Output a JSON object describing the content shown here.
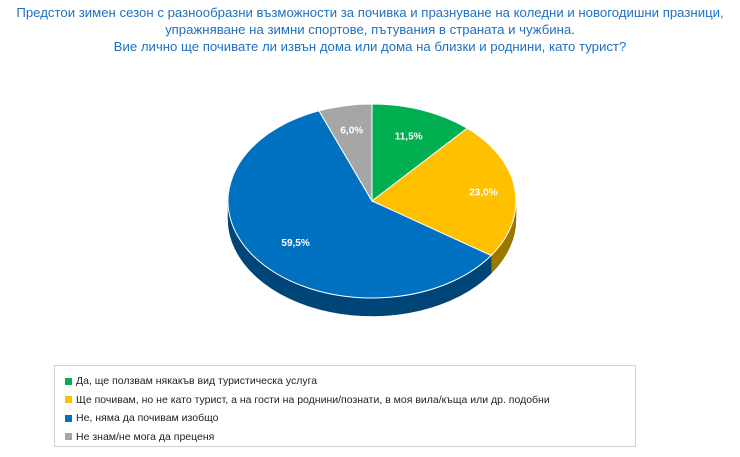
{
  "title": {
    "line1": "Предстои зимен сезон с разнообразни възможности за почивка и празнуване на коледни и новогодишни празници,",
    "line2": "упражняване на зимни спортове, пътувания в страната и чужбина.",
    "line3": "Вие лично ще почивате ли извън дома или дома на близки и роднини, като турист?"
  },
  "chart_data": {
    "type": "pie",
    "style": "3d-tilted",
    "series": [
      {
        "name": "Да, ще ползвам някакъв вид туристическа услуга",
        "value": 11.5,
        "label": "11,5%",
        "color": "#00b050"
      },
      {
        "name": "Ще почивам, но не като турист, а на гости на роднини/познати, в моя вила/къща или др. подобни",
        "value": 23.0,
        "label": "23,0%",
        "color": "#ffc000"
      },
      {
        "name": "Не, няма да почивам изобщо",
        "value": 59.5,
        "label": "59,5%",
        "color": "#0070c0"
      },
      {
        "name": "Не знам/не мога да преценя",
        "value": 6.0,
        "label": "6,0%",
        "color": "#a6a6a6"
      }
    ],
    "legend_position": "bottom"
  }
}
